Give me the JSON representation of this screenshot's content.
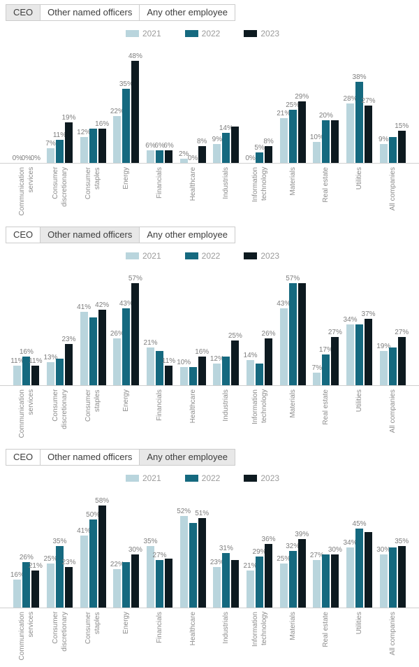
{
  "tabs": [
    {
      "label": "CEO"
    },
    {
      "label": "Other named officers"
    },
    {
      "label": "Any other employee"
    }
  ],
  "legend": [
    {
      "label": "2021",
      "color": "#b9d5dd"
    },
    {
      "label": "2022",
      "color": "#15697f"
    },
    {
      "label": "2023",
      "color": "#0d1a20"
    }
  ],
  "colors": {
    "axis": "#cfcfcf",
    "value_label": "#7d7d7d",
    "category_label": "#8c8c8c",
    "tab_active_bg": "#e8e8e8",
    "tab_border": "#cccccc"
  },
  "categories": [
    [
      "Communication",
      "services"
    ],
    [
      "Consumer",
      "discretionary"
    ],
    [
      "Consumer",
      "staples"
    ],
    [
      "Energy"
    ],
    [
      "Financials"
    ],
    [
      "Healthcare"
    ],
    [
      "Industrials"
    ],
    [
      "Information",
      "technology"
    ],
    [
      "Materials"
    ],
    [
      "Real estate"
    ],
    [
      "Utilities"
    ],
    [
      "All companies"
    ]
  ],
  "chart_data": [
    {
      "type": "bar",
      "active_tab": "CEO",
      "legend_position": "top",
      "grid": false,
      "ylim": [
        0,
        48
      ],
      "categories": [
        "Communication services",
        "Consumer discretionary",
        "Consumer staples",
        "Energy",
        "Financials",
        "Healthcare",
        "Industrials",
        "Information technology",
        "Materials",
        "Real estate",
        "Utilities",
        "All companies"
      ],
      "series": [
        {
          "name": "2021",
          "values": [
            0,
            7,
            12,
            22,
            6,
            2,
            9,
            0,
            21,
            10,
            28,
            9
          ]
        },
        {
          "name": "2022",
          "values": [
            0,
            11,
            16,
            35,
            6,
            0,
            14,
            5,
            25,
            20,
            38,
            12
          ]
        },
        {
          "name": "2023",
          "values": [
            0,
            19,
            16,
            48,
            6,
            8,
            17,
            8,
            29,
            20,
            27,
            15
          ]
        }
      ],
      "shown_labels": [
        [
          "0%",
          "0%",
          "0%"
        ],
        [
          "7%",
          "11%",
          "19%"
        ],
        [
          "12%",
          "",
          "16%"
        ],
        [
          "22%",
          "35%",
          "48%"
        ],
        [
          "6%",
          "6%",
          "6%"
        ],
        [
          "2%",
          "0%",
          "8%"
        ],
        [
          "9%",
          "14%",
          ""
        ],
        [
          "0%",
          "5%",
          "8%"
        ],
        [
          "21%",
          "25%",
          "29%"
        ],
        [
          "10%",
          "20%",
          ""
        ],
        [
          "28%",
          "38%",
          "27%"
        ],
        [
          "9%",
          "",
          "15%"
        ]
      ]
    },
    {
      "type": "bar",
      "active_tab": "Other named officers",
      "legend_position": "top",
      "grid": false,
      "ylim": [
        0,
        57
      ],
      "categories": [
        "Communication services",
        "Consumer discretionary",
        "Consumer staples",
        "Energy",
        "Financials",
        "Healthcare",
        "Industrials",
        "Information technology",
        "Materials",
        "Real estate",
        "Utilities",
        "All companies"
      ],
      "series": [
        {
          "name": "2021",
          "values": [
            11,
            13,
            41,
            26,
            21,
            10,
            12,
            14,
            43,
            7,
            34,
            19
          ]
        },
        {
          "name": "2022",
          "values": [
            16,
            15,
            38,
            43,
            19,
            10,
            16,
            12,
            57,
            17,
            34,
            21
          ]
        },
        {
          "name": "2023",
          "values": [
            11,
            23,
            42,
            57,
            11,
            16,
            25,
            26,
            57,
            27,
            37,
            27
          ]
        }
      ],
      "shown_labels": [
        [
          "11%",
          "16%",
          "11%"
        ],
        [
          "13%",
          "",
          "23%"
        ],
        [
          "41%",
          "",
          "42%"
        ],
        [
          "26%",
          "43%",
          "57%"
        ],
        [
          "21%",
          "",
          "11%"
        ],
        [
          "10%",
          "",
          "16%"
        ],
        [
          "12%",
          "",
          "25%"
        ],
        [
          "14%",
          "",
          "26%"
        ],
        [
          "43%",
          "57%",
          ""
        ],
        [
          "7%",
          "17%",
          "27%"
        ],
        [
          "34%",
          "",
          "37%"
        ],
        [
          "19%",
          "",
          "27%"
        ]
      ]
    },
    {
      "type": "bar",
      "active_tab": "Any other employee",
      "legend_position": "top",
      "grid": false,
      "ylim": [
        0,
        58
      ],
      "categories": [
        "Communication services",
        "Consumer discretionary",
        "Consumer staples",
        "Energy",
        "Financials",
        "Healthcare",
        "Industrials",
        "Information technology",
        "Materials",
        "Real estate",
        "Utilities",
        "All companies"
      ],
      "series": [
        {
          "name": "2021",
          "values": [
            16,
            25,
            41,
            22,
            35,
            52,
            23,
            21,
            25,
            27,
            34,
            30
          ]
        },
        {
          "name": "2022",
          "values": [
            26,
            35,
            50,
            26,
            27,
            48,
            31,
            29,
            32,
            30,
            45,
            34
          ]
        },
        {
          "name": "2023",
          "values": [
            21,
            23,
            58,
            30,
            28,
            51,
            27,
            36,
            39,
            30,
            43,
            35
          ]
        }
      ],
      "shown_labels": [
        [
          "16%",
          "26%",
          "21%"
        ],
        [
          "25%",
          "35%",
          "23%"
        ],
        [
          "41%",
          "50%",
          "58%"
        ],
        [
          "22%",
          "",
          "30%"
        ],
        [
          "35%",
          "27%",
          ""
        ],
        [
          "52%",
          "",
          "51%"
        ],
        [
          "23%",
          "31%",
          ""
        ],
        [
          "21%",
          "29%",
          "36%"
        ],
        [
          "25%",
          "32%",
          "39%"
        ],
        [
          "27%",
          "",
          "30%"
        ],
        [
          "34%",
          "45%",
          ""
        ],
        [
          "30%",
          "",
          "35%"
        ]
      ]
    }
  ]
}
